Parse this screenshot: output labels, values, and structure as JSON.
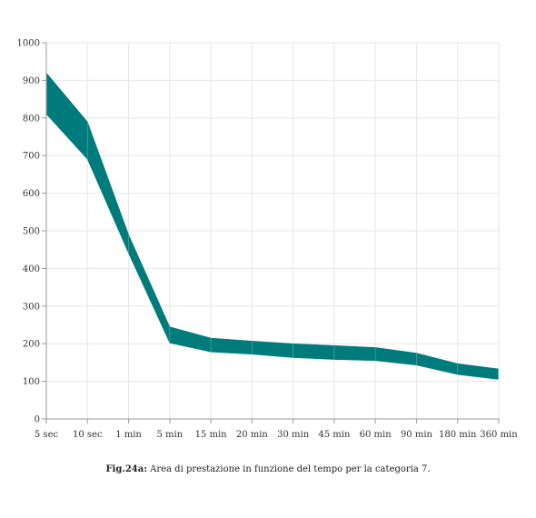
{
  "chart_data": {
    "type": "area",
    "categories": [
      "5 sec",
      "10 sec",
      "1 min",
      "5 min",
      "15 min",
      "20 min",
      "30 min",
      "45 min",
      "60 min",
      "90 min",
      "180 min",
      "360 min"
    ],
    "series": [
      {
        "values": [
          920,
          790,
          490,
          245,
          215,
          207,
          200,
          195,
          190,
          175,
          147,
          133
        ]
      },
      {
        "values": [
          810,
          690,
          440,
          202,
          178,
          172,
          163,
          158,
          155,
          143,
          118,
          105
        ]
      }
    ],
    "ylim": [
      0,
      1000
    ],
    "yticks": [
      0,
      100,
      200,
      300,
      400,
      500,
      600,
      700,
      800,
      900,
      1000
    ],
    "grid": true,
    "fill_color": "#007B7B",
    "title": "",
    "xlabel": "",
    "ylabel": ""
  },
  "caption": {
    "label": "Fig.24a:",
    "text": "Area di prestazione in funzione del tempo per la categoria 7."
  }
}
